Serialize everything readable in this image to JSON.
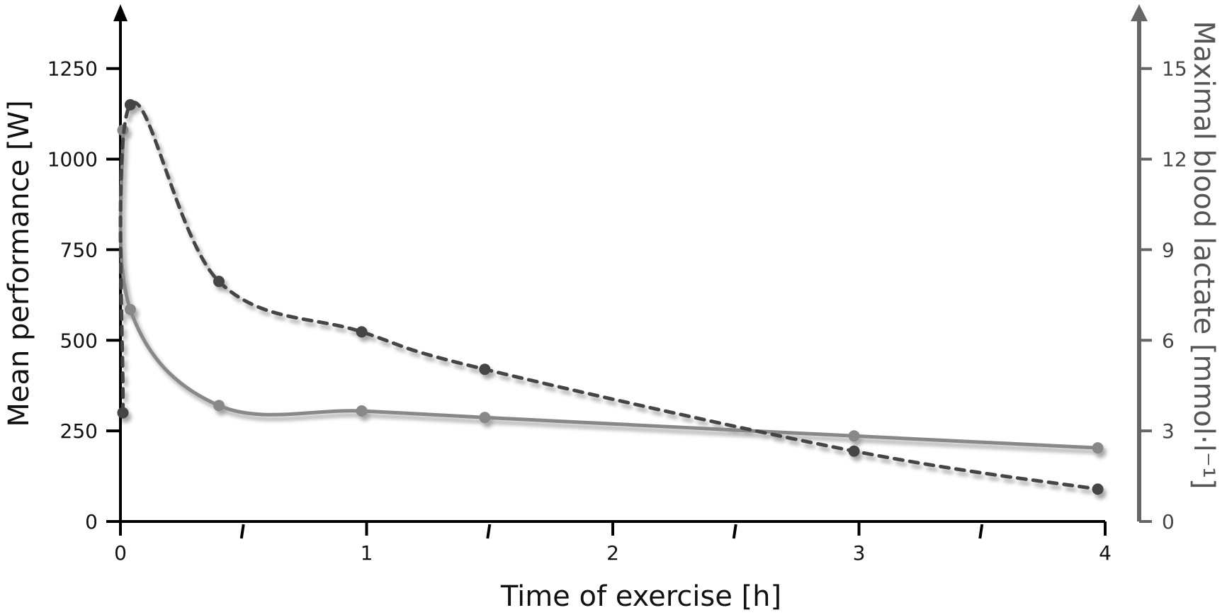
{
  "chart_data": {
    "type": "line",
    "title": "",
    "xlabel": "Time of exercise [h]",
    "ylabel": "Mean performance [W]",
    "ylabel_right": "Maximal blood lactate [mmol·l⁻¹]",
    "xlim": [
      0,
      4
    ],
    "ylim": [
      0,
      1400
    ],
    "ylim_right": [
      0,
      16.8
    ],
    "x_ticks": [
      {
        "value": 0,
        "label": "0"
      },
      {
        "value": 1,
        "label": "1"
      },
      {
        "value": 2,
        "label": "2"
      },
      {
        "value": 3,
        "label": "3"
      },
      {
        "value": 4,
        "label": "4"
      }
    ],
    "x_minor_ticks": [
      0.5,
      1.5,
      2.5,
      3.5
    ],
    "y_ticks": [
      {
        "value": 0,
        "label": "0"
      },
      {
        "value": 250,
        "label": "250"
      },
      {
        "value": 500,
        "label": "500"
      },
      {
        "value": 750,
        "label": "750"
      },
      {
        "value": 1000,
        "label": "1000"
      },
      {
        "value": 1250,
        "label": "1250"
      }
    ],
    "y_ticks_right": [
      {
        "value": 0,
        "label": "0"
      },
      {
        "value": 3,
        "label": "3"
      },
      {
        "value": 6,
        "label": "6"
      },
      {
        "value": 9,
        "label": "9"
      },
      {
        "value": 12,
        "label": "12"
      },
      {
        "value": 15,
        "label": "15"
      }
    ],
    "grid": false,
    "legend": "none",
    "series": [
      {
        "axis": "left",
        "style": "solid",
        "color": "#888888",
        "points": [
          {
            "x": 0.01,
            "y": 1080
          },
          {
            "x": 0.04,
            "y": 585
          },
          {
            "x": 0.4,
            "y": 320
          },
          {
            "x": 0.98,
            "y": 305
          },
          {
            "x": 1.48,
            "y": 287
          },
          {
            "x": 2.98,
            "y": 236
          },
          {
            "x": 3.97,
            "y": 203
          }
        ]
      },
      {
        "axis": "right",
        "style": "dashed",
        "color": "#444444",
        "points": [
          {
            "x": 0.01,
            "y": 3.6
          },
          {
            "x": 0.04,
            "y": 13.8
          },
          {
            "x": 0.4,
            "y": 7.95
          },
          {
            "x": 0.98,
            "y": 6.28
          },
          {
            "x": 1.48,
            "y": 5.04
          },
          {
            "x": 2.98,
            "y": 2.33
          },
          {
            "x": 3.97,
            "y": 1.07
          }
        ]
      }
    ]
  }
}
